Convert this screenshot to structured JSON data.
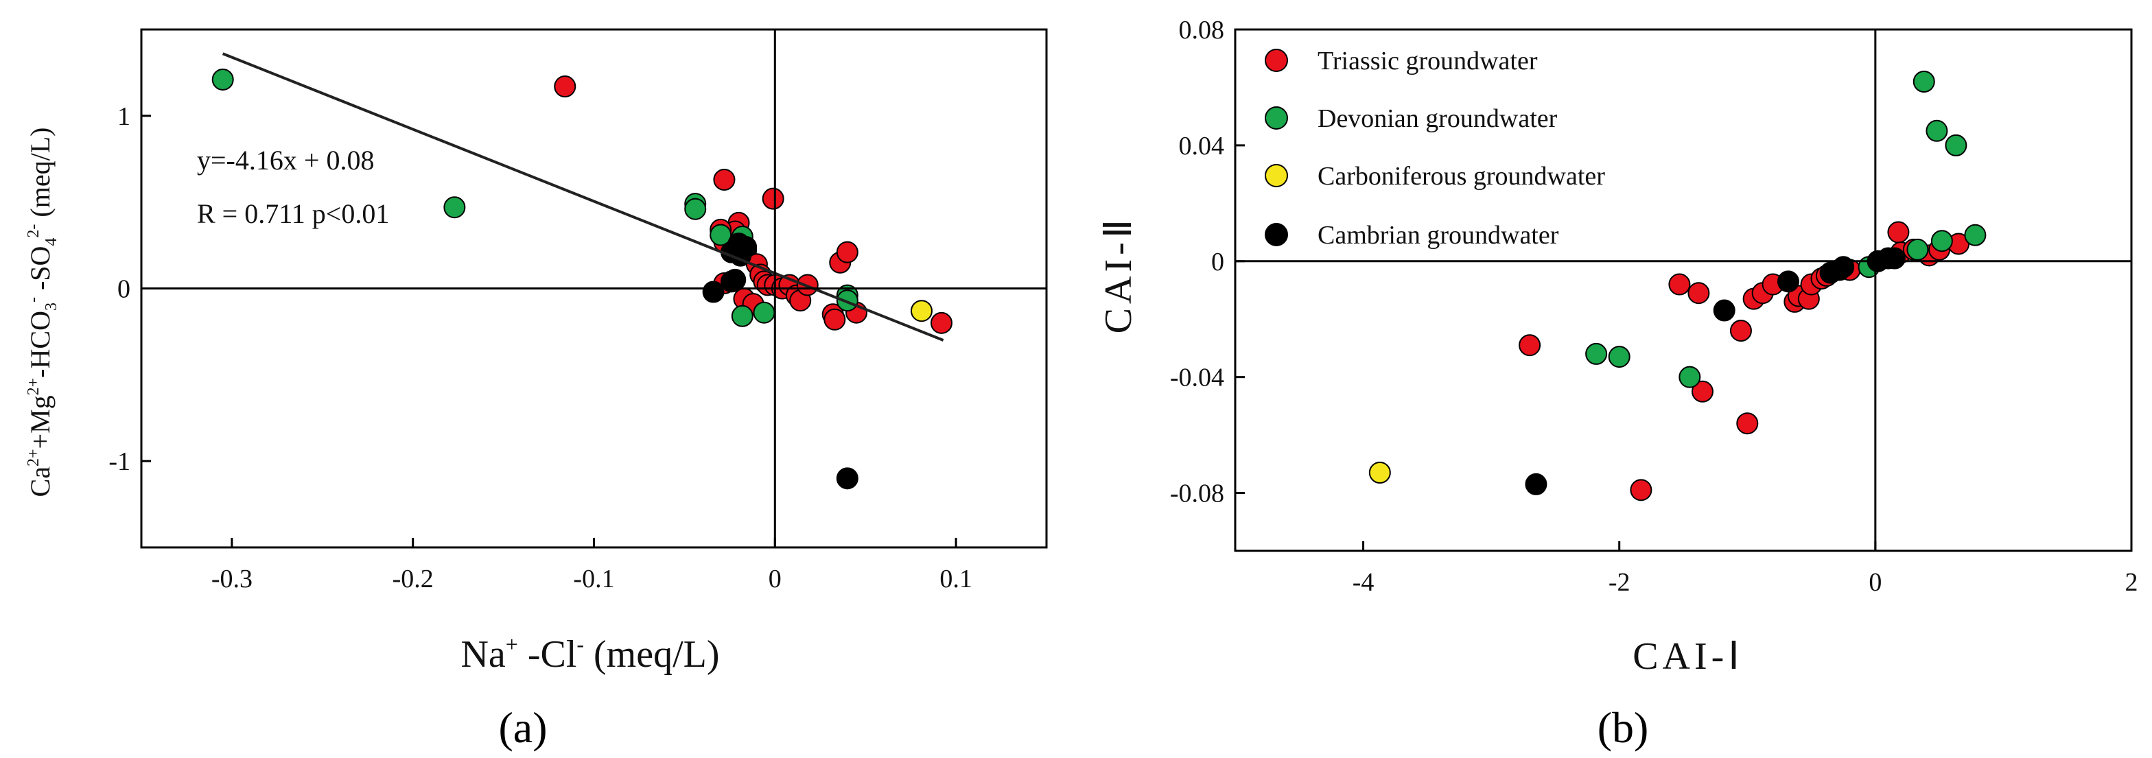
{
  "colors": {
    "triassic": "#e8121c",
    "devonian": "#1aa64a",
    "carboniferous": "#f5e51c",
    "cambrian": "#000000",
    "axis": "#000000",
    "regression": "#222222"
  },
  "chart_data": [
    {
      "type": "scatter",
      "panel_label": "(a)",
      "xlabel": {
        "main": "Na",
        "sup1": "+",
        "mid": " -Cl",
        "sup2": "-",
        "tail": " (meq/L)"
      },
      "ylabel": {
        "p1": "Ca",
        "s1": "2+",
        "p2": "+Mg",
        "s2": "2+",
        "p3": "-HCO",
        "sub3": "3",
        "s3": "-",
        "p4": " -SO",
        "sub4": "4",
        "s4": "2-",
        "p5": " (meq/L)"
      },
      "xlim": [
        -0.35,
        0.15
      ],
      "ylim": [
        -1.5,
        1.5
      ],
      "xticks": [
        -0.3,
        -0.2,
        -0.1,
        0,
        0.1
      ],
      "xticklabels": [
        "-0.3",
        "-0.2",
        "-0.1",
        "0",
        "0.1"
      ],
      "yticks": [
        1,
        0,
        -1
      ],
      "yticklabels": [
        "1",
        "0",
        "-1"
      ],
      "reference_lines": {
        "x": 0,
        "y": 0
      },
      "regression": {
        "equation": "y=-4.16x + 0.08",
        "stats": "R = 0.711  p<0.01",
        "from": [
          -0.305,
          1.36
        ],
        "to": [
          0.093,
          -0.3
        ]
      },
      "series": [
        {
          "name": "Triassic groundwater",
          "color_key": "triassic",
          "points": [
            [
              -0.116,
              1.17
            ],
            [
              -0.028,
              0.63
            ],
            [
              -0.001,
              0.52
            ],
            [
              -0.02,
              0.38
            ],
            [
              -0.022,
              0.33
            ],
            [
              -0.03,
              0.34
            ],
            [
              -0.028,
              0.27
            ],
            [
              -0.016,
              0.22
            ],
            [
              -0.01,
              0.14
            ],
            [
              -0.008,
              0.08
            ],
            [
              -0.006,
              0.04
            ],
            [
              -0.028,
              0.03
            ],
            [
              -0.004,
              0.02
            ],
            [
              0.0,
              0.02
            ],
            [
              0.004,
              0.0
            ],
            [
              0.008,
              0.02
            ],
            [
              0.012,
              -0.04
            ],
            [
              0.014,
              -0.07
            ],
            [
              -0.017,
              -0.06
            ],
            [
              -0.012,
              -0.09
            ],
            [
              0.018,
              0.02
            ],
            [
              0.036,
              0.15
            ],
            [
              0.04,
              0.21
            ],
            [
              0.032,
              -0.15
            ],
            [
              0.033,
              -0.18
            ],
            [
              0.045,
              -0.14
            ],
            [
              0.092,
              -0.2
            ]
          ]
        },
        {
          "name": "Devonian groundwater",
          "color_key": "devonian",
          "points": [
            [
              -0.305,
              1.21
            ],
            [
              -0.177,
              0.47
            ],
            [
              -0.044,
              0.49
            ],
            [
              -0.044,
              0.46
            ],
            [
              -0.03,
              0.31
            ],
            [
              -0.018,
              0.3
            ],
            [
              0.04,
              -0.04
            ],
            [
              0.04,
              -0.07
            ],
            [
              -0.018,
              -0.16
            ],
            [
              -0.006,
              -0.14
            ]
          ]
        },
        {
          "name": "Carboniferous groundwater",
          "color_key": "carboniferous",
          "points": [
            [
              0.081,
              -0.13
            ]
          ]
        },
        {
          "name": "Cambrian groundwater",
          "color_key": "cambrian",
          "points": [
            [
              -0.02,
              0.26
            ],
            [
              -0.024,
              0.21
            ],
            [
              -0.016,
              0.24
            ],
            [
              -0.019,
              0.19
            ],
            [
              -0.022,
              0.05
            ],
            [
              -0.024,
              0.04
            ],
            [
              -0.034,
              -0.02
            ],
            [
              0.04,
              -1.1
            ]
          ]
        }
      ]
    },
    {
      "type": "scatter",
      "panel_label": "(b)",
      "xlabel": "CAI-Ⅰ",
      "ylabel": "CAI-Ⅱ",
      "xlim": [
        -5,
        2
      ],
      "ylim": [
        -0.1,
        0.08
      ],
      "xticks": [
        -4,
        -2,
        0,
        2
      ],
      "xticklabels": [
        "-4",
        "-2",
        "0",
        "2"
      ],
      "yticks": [
        0.08,
        0.04,
        0,
        -0.04,
        -0.08
      ],
      "yticklabels": [
        "0.08",
        "0.04",
        "0",
        "-0.04",
        "-0.08"
      ],
      "reference_lines": {
        "x": 0,
        "y": 0
      },
      "legend": {
        "position": "top-left",
        "entries": [
          {
            "label": "Triassic groundwater",
            "color_key": "triassic"
          },
          {
            "label": "Devonian groundwater",
            "color_key": "devonian"
          },
          {
            "label": "Carboniferous groundwater",
            "color_key": "carboniferous"
          },
          {
            "label": "Cambrian groundwater",
            "color_key": "cambrian"
          }
        ]
      },
      "series": [
        {
          "name": "Triassic groundwater",
          "color_key": "triassic",
          "points": [
            [
              -2.7,
              -0.029
            ],
            [
              -1.83,
              -0.079
            ],
            [
              -1.53,
              -0.008
            ],
            [
              -1.38,
              -0.011
            ],
            [
              -1.35,
              -0.045
            ],
            [
              -1.05,
              -0.024
            ],
            [
              -1.0,
              -0.056
            ],
            [
              -0.95,
              -0.013
            ],
            [
              -0.88,
              -0.011
            ],
            [
              -0.8,
              -0.008
            ],
            [
              -0.63,
              -0.014
            ],
            [
              -0.6,
              -0.012
            ],
            [
              -0.52,
              -0.013
            ],
            [
              -0.5,
              -0.008
            ],
            [
              -0.42,
              -0.006
            ],
            [
              -0.38,
              -0.005
            ],
            [
              -0.2,
              -0.003
            ],
            [
              0.18,
              0.01
            ],
            [
              0.2,
              0.003
            ],
            [
              0.3,
              0.004
            ],
            [
              0.42,
              0.002
            ],
            [
              0.5,
              0.004
            ],
            [
              0.65,
              0.006
            ]
          ]
        },
        {
          "name": "Devonian groundwater",
          "color_key": "devonian",
          "points": [
            [
              -2.18,
              -0.032
            ],
            [
              -2.0,
              -0.033
            ],
            [
              -1.45,
              -0.04
            ],
            [
              -0.05,
              -0.002
            ],
            [
              0.33,
              0.004
            ],
            [
              0.38,
              0.062
            ],
            [
              0.48,
              0.045
            ],
            [
              0.52,
              0.007
            ],
            [
              0.63,
              0.04
            ],
            [
              0.78,
              0.009
            ]
          ]
        },
        {
          "name": "Carboniferous groundwater",
          "color_key": "carboniferous",
          "points": [
            [
              -3.87,
              -0.073
            ]
          ]
        },
        {
          "name": "Cambrian groundwater",
          "color_key": "cambrian",
          "points": [
            [
              -2.65,
              -0.077
            ],
            [
              -1.18,
              -0.017
            ],
            [
              -0.68,
              -0.007
            ],
            [
              -0.35,
              -0.004
            ],
            [
              -0.28,
              -0.003
            ],
            [
              -0.25,
              -0.002
            ],
            [
              0.02,
              0.0
            ],
            [
              0.1,
              0.001
            ],
            [
              0.15,
              0.001
            ]
          ]
        }
      ]
    }
  ]
}
